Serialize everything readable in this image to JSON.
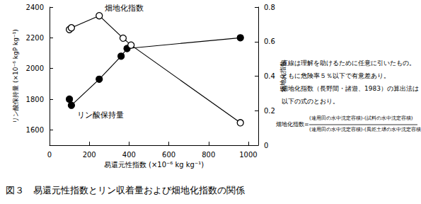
{
  "chart_data": {
    "type": "scatter",
    "title": "図３　易還元性指数とリン収着量および畑地化指数の関係",
    "x_label": "易還元性指数 (×10⁻⁶ kg kg⁻¹)",
    "y_label": "リン酸保持量 (×10⁻⁶ kgP kg⁻¹)",
    "y2_label": "畑地化指数",
    "xlim": [
      0,
      1050
    ],
    "xticks": [
      0,
      200,
      400,
      600,
      800,
      1000
    ],
    "ylim": [
      1500,
      2400
    ],
    "yticks": [
      1600,
      1800,
      2000,
      2200,
      2400
    ],
    "y2lim": [
      0,
      0.8
    ],
    "y2ticks": [
      0,
      0.2,
      0.4,
      0.6,
      0.8
    ],
    "series": [
      {
        "name": "リン酸保持量",
        "color": "#000000",
        "marker": "filled",
        "line_style": "solid",
        "x": [
          100,
          110,
          250,
          360,
          390,
          960
        ],
        "values": [
          1800,
          1760,
          1930,
          2080,
          2130,
          2200
        ]
      },
      {
        "name": "畑地化指数",
        "axis": "y2",
        "color": "#000000",
        "marker": "open",
        "line_style": "solid",
        "x": [
          100,
          110,
          250,
          370,
          410,
          960
        ],
        "values": [
          0.67,
          0.68,
          0.75,
          0.62,
          0.58,
          0.13
        ]
      }
    ],
    "annotations": [
      "直線は理解を助けるために任意に引いたもの。",
      "ともに危険率５％以下で有意差あり。",
      "畑地化指数（長野間・諸遊、1983）の算出法は",
      "以下の式のとおり。"
    ],
    "formula": {
      "lhs": "畑地化指数=",
      "numerator": "(連用田の水中沈定容積)-(試料の水中沈定容積)",
      "denominator": "(連用田の水中沈定容積)-(風乾土壌の水中沈定容積)"
    }
  }
}
